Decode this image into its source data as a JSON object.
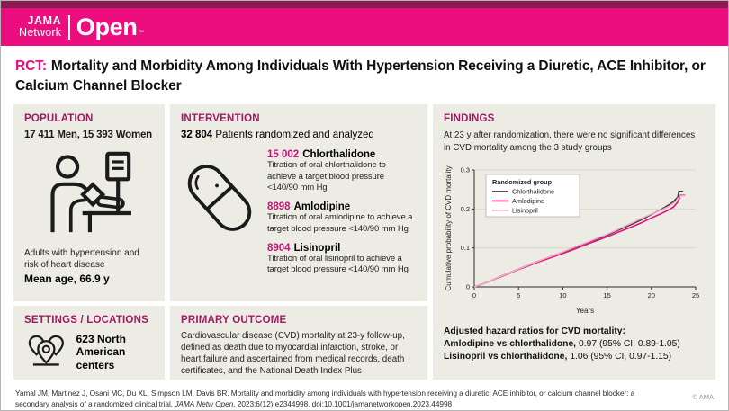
{
  "header": {
    "logo_jama": "JAMA",
    "logo_network": "Network",
    "logo_open": "Open",
    "logo_tm": "™"
  },
  "title": {
    "tag": "RCT:",
    "text": "Mortality and Morbidity Among Individuals With Hypertension Receiving a Diuretic, ACE Inhibitor, or Calcium Channel Blocker"
  },
  "population": {
    "heading": "POPULATION",
    "stat": "17 411 Men, 15 393 Women",
    "description": "Adults with hypertension and risk of heart disease",
    "mean_age": "Mean age, 66.9 y"
  },
  "intervention": {
    "heading": "INTERVENTION",
    "stat_number": "32 804",
    "stat_text": " Patients randomized and analyzed",
    "groups": [
      {
        "n": "15 002",
        "name": "Chlorthalidone",
        "detail": "Titration of oral chlorthalidone to achieve a target blood pressure <140/90 mm Hg"
      },
      {
        "n": "8898",
        "name": "Amlodipine",
        "detail": "Titration of oral amlodipine to achieve a target blood pressure <140/90 mm Hg"
      },
      {
        "n": "8904",
        "name": "Lisinopril",
        "detail": "Titration of oral lisinopril to achieve a target blood pressure <140/90 mm Hg"
      }
    ]
  },
  "settings": {
    "heading": "SETTINGS / LOCATIONS",
    "stat": "623 North American centers"
  },
  "primary_outcome": {
    "heading": "PRIMARY OUTCOME",
    "text": "Cardiovascular disease (CVD) mortality at 23-y follow-up, defined as death due to myocardial infarction, stroke, or heart failure and ascertained from medical records, death certificates, and the National Death Index Plus"
  },
  "findings": {
    "heading": "FINDINGS",
    "summary": "At 23 y after randomization, there were no significant differences in CVD mortality among the 3 study groups",
    "hazard_title": "Adjusted hazard ratios for CVD mortality:",
    "hazard_lines": [
      {
        "label": "Amlodipine vs chlorthalidone,",
        "value": "0.97 (95% CI, 0.89-1.05)"
      },
      {
        "label": "Lisinopril vs chlorthalidone,",
        "value": "1.06 (95% CI, 0.97-1.15)"
      }
    ]
  },
  "chart_data": {
    "type": "line",
    "title": "",
    "xlabel": "Years",
    "ylabel": "Cumulative probability of CVD mortality",
    "xlim": [
      0,
      25
    ],
    "ylim": [
      0,
      0.3
    ],
    "xticks": [
      0,
      5,
      10,
      15,
      20,
      25
    ],
    "yticks": [
      0,
      0.1,
      0.2,
      0.3
    ],
    "grid": "horizontal",
    "legend_title": "Randomized group",
    "legend_position": "top-left",
    "series": [
      {
        "name": "Chlorthalidone",
        "color": "#3b3838",
        "width": 1.6,
        "points": [
          [
            0,
            0
          ],
          [
            1,
            0.008
          ],
          [
            2,
            0.017
          ],
          [
            3,
            0.027
          ],
          [
            4,
            0.036
          ],
          [
            5,
            0.046
          ],
          [
            6,
            0.055
          ],
          [
            7,
            0.064
          ],
          [
            8,
            0.072
          ],
          [
            9,
            0.081
          ],
          [
            10,
            0.089
          ],
          [
            11,
            0.098
          ],
          [
            12,
            0.107
          ],
          [
            13,
            0.116
          ],
          [
            14,
            0.124
          ],
          [
            15,
            0.133
          ],
          [
            16,
            0.143
          ],
          [
            17,
            0.153
          ],
          [
            18,
            0.163
          ],
          [
            19,
            0.174
          ],
          [
            20,
            0.186
          ],
          [
            21,
            0.197
          ],
          [
            22,
            0.211
          ],
          [
            22.5,
            0.219
          ],
          [
            23,
            0.231
          ],
          [
            23.1,
            0.245
          ],
          [
            23.6,
            0.245
          ]
        ]
      },
      {
        "name": "Amlodipine",
        "color": "#e8127d",
        "width": 1.6,
        "points": [
          [
            0,
            0
          ],
          [
            1,
            0.008
          ],
          [
            2,
            0.017
          ],
          [
            3,
            0.026
          ],
          [
            4,
            0.035
          ],
          [
            5,
            0.045
          ],
          [
            6,
            0.053
          ],
          [
            7,
            0.062
          ],
          [
            8,
            0.07
          ],
          [
            9,
            0.078
          ],
          [
            10,
            0.086
          ],
          [
            11,
            0.094
          ],
          [
            12,
            0.103
          ],
          [
            13,
            0.112
          ],
          [
            14,
            0.12
          ],
          [
            15,
            0.129
          ],
          [
            16,
            0.138
          ],
          [
            17,
            0.147
          ],
          [
            18,
            0.156
          ],
          [
            19,
            0.166
          ],
          [
            20,
            0.177
          ],
          [
            21,
            0.187
          ],
          [
            22,
            0.198
          ],
          [
            22.5,
            0.205
          ],
          [
            23,
            0.218
          ],
          [
            23.3,
            0.235
          ],
          [
            23.8,
            0.235
          ]
        ]
      },
      {
        "name": "Lisinopril",
        "color": "#f6a9c9",
        "width": 1.5,
        "points": [
          [
            0,
            0
          ],
          [
            1,
            0.008
          ],
          [
            2,
            0.017
          ],
          [
            3,
            0.027
          ],
          [
            4,
            0.036
          ],
          [
            5,
            0.046
          ],
          [
            6,
            0.055
          ],
          [
            7,
            0.064
          ],
          [
            8,
            0.073
          ],
          [
            9,
            0.081
          ],
          [
            10,
            0.09
          ],
          [
            11,
            0.099
          ],
          [
            12,
            0.108
          ],
          [
            13,
            0.117
          ],
          [
            14,
            0.126
          ],
          [
            15,
            0.135
          ],
          [
            16,
            0.145
          ],
          [
            17,
            0.156
          ],
          [
            18,
            0.166
          ],
          [
            19,
            0.177
          ],
          [
            20,
            0.187
          ],
          [
            21,
            0.196
          ],
          [
            22,
            0.207
          ],
          [
            22.7,
            0.218
          ],
          [
            23,
            0.228
          ],
          [
            23.4,
            0.234
          ],
          [
            23.8,
            0.234
          ]
        ]
      }
    ]
  },
  "footer": {
    "citation_plain1": "Yamal JM, Martinez J, Osani MC, Du XL, Simpson LM, Davis BR. Mortality and morbidity among individuals with hypertension receiving a diuretic, ACE inhibitor, or calcium channel blocker: a secondary analysis of a randomized clinical trial. ",
    "citation_italic": "JAMA Netw Open",
    "citation_plain2": ". 2023;6(12):e2344998. doi:10.1001/jamanetworkopen.2023.44998",
    "copyright": "© AMA"
  },
  "colors": {
    "brand_pink": "#ec0e7f",
    "dark_magenta": "#8a1b51",
    "heading_magenta": "#9d1c61",
    "panel_bg": "#ecebe4"
  }
}
